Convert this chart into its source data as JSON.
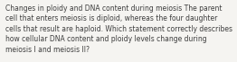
{
  "text": "Changes in ploidy and DNA content during meiosis The parent\ncell that enters meiosis is diploid, whereas the four daughter\ncells that result are haploid. Which statement correctly describes\nhow cellular DNA content and ploidy levels change during\nmeiosis I and meiosis II?",
  "background_color": "#f5f4f1",
  "text_color": "#3d3d3d",
  "font_size": 5.5,
  "fig_width": 2.62,
  "fig_height": 0.69,
  "dpi": 100
}
